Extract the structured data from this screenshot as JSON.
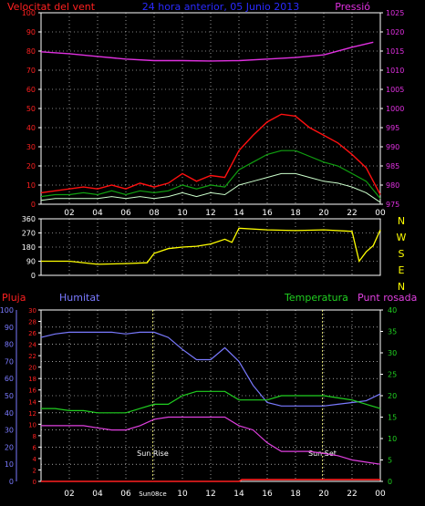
{
  "colors": {
    "wind_axis": "#ff2020",
    "title": "#2a2aff",
    "pressure": "#e030e0",
    "direction": "#ffff00",
    "rain": "#ff2020",
    "humidity": "#7a7aff",
    "temperature": "#20d020",
    "dewpoint": "#e040e0",
    "grid": "#ffffff",
    "gust": "#ff1010",
    "wind": "#10a010",
    "min": "#ccffcc"
  },
  "chart_data": [
    {
      "type": "line",
      "name": "wind-pressure",
      "title": "24 hora anterior, 05 Junio 2013",
      "left_label": "Velocitat del vent",
      "right_label": "Pressió",
      "x_ticks": [
        "02",
        "04",
        "06",
        "08",
        "10",
        "12",
        "14",
        "16",
        "18",
        "20",
        "22",
        "00"
      ],
      "x_range": [
        0,
        24
      ],
      "left_ticks": [
        "0",
        "10",
        "20",
        "30",
        "40",
        "50",
        "60",
        "70",
        "80",
        "90",
        "100"
      ],
      "left_range": [
        0,
        100
      ],
      "right_ticks": [
        "975",
        "980",
        "985",
        "990",
        "995",
        "1000",
        "1005",
        "1010",
        "1015",
        "1020",
        "1025"
      ],
      "right_range": [
        975,
        1025
      ],
      "pressure": {
        "x": [
          0,
          2,
          4,
          6,
          8,
          10,
          12,
          14,
          16,
          18,
          20,
          22,
          23.5
        ],
        "y": [
          1014.8,
          1014.3,
          1013.6,
          1012.9,
          1012.5,
          1012.5,
          1012.4,
          1012.5,
          1012.9,
          1013.3,
          1014.0,
          1016.0,
          1017.3
        ]
      },
      "gust": {
        "x": [
          0,
          1,
          2,
          3,
          4,
          5,
          6,
          7,
          8,
          9,
          10,
          11,
          12,
          13,
          14,
          15,
          16,
          17,
          18,
          19,
          20,
          21,
          22,
          23,
          24
        ],
        "y": [
          6,
          7,
          8,
          9,
          8,
          10,
          8,
          11,
          9,
          11,
          16,
          12,
          15,
          14,
          28,
          36,
          43,
          47,
          46,
          40,
          36,
          32,
          26,
          19,
          5
        ]
      },
      "wind": {
        "x": [
          0,
          1,
          2,
          3,
          4,
          5,
          6,
          7,
          8,
          9,
          10,
          11,
          12,
          13,
          14,
          15,
          16,
          17,
          18,
          19,
          20,
          21,
          22,
          23,
          24
        ],
        "y": [
          4,
          5,
          5,
          6,
          5,
          7,
          5,
          7,
          6,
          7,
          10,
          8,
          10,
          9,
          18,
          22,
          26,
          28,
          28,
          25,
          22,
          20,
          16,
          12,
          3
        ]
      },
      "min_wind": {
        "x": [
          0,
          1,
          2,
          3,
          4,
          5,
          6,
          7,
          8,
          9,
          10,
          11,
          12,
          13,
          14,
          15,
          16,
          17,
          18,
          19,
          20,
          21,
          22,
          23,
          24
        ],
        "y": [
          2,
          3,
          3,
          3,
          3,
          4,
          3,
          4,
          3,
          4,
          6,
          4,
          6,
          5,
          10,
          12,
          14,
          16,
          16,
          14,
          12,
          11,
          9,
          6,
          1
        ]
      }
    },
    {
      "type": "line",
      "name": "wind-direction",
      "x_range": [
        0,
        24
      ],
      "left_ticks": [
        "0",
        "90",
        "180",
        "270",
        "360"
      ],
      "left_range": [
        0,
        360
      ],
      "compass": [
        "N",
        "W",
        "S",
        "E",
        "N"
      ],
      "direction": {
        "x": [
          0,
          2,
          4,
          6,
          7.5,
          8,
          9,
          10,
          11,
          12,
          13,
          13.5,
          14,
          16,
          18,
          20,
          22,
          22.5,
          23,
          23.5,
          24
        ],
        "y": [
          90,
          90,
          70,
          75,
          80,
          140,
          170,
          180,
          185,
          200,
          230,
          210,
          300,
          290,
          285,
          290,
          280,
          90,
          150,
          190,
          290
        ]
      }
    },
    {
      "type": "line",
      "name": "climate",
      "labels": {
        "rain": "Pluja",
        "humidity": "Humitat",
        "temperature": "Temperatura",
        "dewpoint": "Punt rosada"
      },
      "x_ticks": [
        "02",
        "04",
        "06",
        "08",
        "10",
        "12",
        "14",
        "16",
        "18",
        "20",
        "22",
        "00"
      ],
      "x_range": [
        0,
        24
      ],
      "hum_ticks": [
        "0",
        "10",
        "20",
        "30",
        "40",
        "50",
        "60",
        "70",
        "80",
        "90",
        "100"
      ],
      "hum_range": [
        0,
        100
      ],
      "rain_ticks": [
        "0",
        "2",
        "4",
        "6",
        "8",
        "10",
        "12",
        "14",
        "16",
        "18",
        "20",
        "22",
        "24",
        "26",
        "28",
        "30"
      ],
      "rain_range": [
        0,
        30
      ],
      "temp_ticks": [
        "0",
        "5",
        "10",
        "15",
        "20",
        "25",
        "30",
        "35",
        "40"
      ],
      "temp_range": [
        0,
        40
      ],
      "events": [
        {
          "x": 7.9,
          "label": "Sun Rise",
          "tick": "Sun08ce"
        },
        {
          "x": 19.9,
          "label": "Sun Set"
        }
      ],
      "humidity": {
        "x": [
          0,
          1,
          2,
          3,
          4,
          5,
          6,
          7,
          8,
          9,
          10,
          11,
          12,
          13,
          14,
          15,
          16,
          17,
          18,
          19,
          20,
          21,
          22,
          23,
          24
        ],
        "y": [
          84,
          86,
          87,
          87,
          87,
          87,
          86,
          87,
          87,
          84,
          77,
          71,
          71,
          78,
          70,
          56,
          46,
          44,
          44,
          44,
          44,
          45,
          46,
          47,
          51
        ]
      },
      "temperature": {
        "x": [
          0,
          1,
          2,
          3,
          4,
          5,
          6,
          7,
          8,
          9,
          10,
          11,
          12,
          13,
          14,
          15,
          16,
          17,
          18,
          19,
          20,
          21,
          22,
          23,
          24
        ],
        "y": [
          17,
          17,
          16.5,
          16.5,
          16,
          16,
          16,
          17,
          18,
          18,
          20,
          21,
          21,
          21,
          19,
          19,
          19,
          20,
          20,
          20,
          20,
          19.5,
          19,
          18,
          17
        ]
      },
      "dewpoint": {
        "x": [
          0,
          1,
          2,
          3,
          4,
          5,
          6,
          7,
          8,
          9,
          10,
          11,
          12,
          13,
          14,
          15,
          16,
          17,
          18,
          19,
          20,
          21,
          22,
          23,
          24
        ],
        "y": [
          13,
          13,
          13,
          13,
          12.5,
          12,
          12,
          13,
          14.5,
          15,
          15,
          15,
          15,
          15,
          13,
          12,
          9,
          7,
          7,
          7,
          6.5,
          6,
          5,
          4.5,
          4
        ]
      },
      "rain": {
        "x": [
          0,
          14,
          14.2,
          24
        ],
        "y": [
          0,
          0,
          0.3,
          0.3
        ]
      }
    }
  ]
}
